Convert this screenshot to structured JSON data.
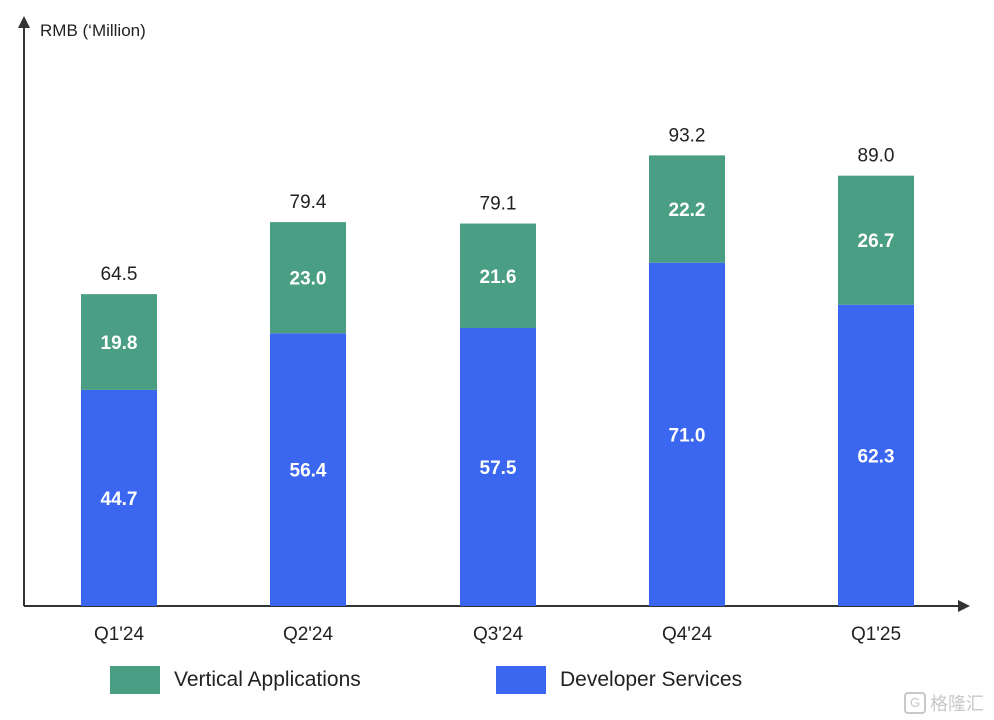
{
  "chart_data": {
    "type": "bar",
    "stacked": true,
    "ylabel": "RMB (‘Million)",
    "categories": [
      "Q1'24",
      "Q2'24",
      "Q3'24",
      "Q4'24",
      "Q1'25"
    ],
    "series": [
      {
        "name": "Developer Services",
        "values": [
          44.7,
          56.4,
          57.5,
          71.0,
          62.3
        ],
        "labels": [
          "44.7",
          "56.4",
          "57.5",
          "71.0",
          "62.3"
        ],
        "color": "#3a66f0"
      },
      {
        "name": "Vertical Applications",
        "values": [
          19.8,
          23.0,
          21.6,
          22.2,
          26.7
        ],
        "labels": [
          "19.8",
          "23.0",
          "21.6",
          "22.2",
          "26.7"
        ],
        "color": "#4a9e84"
      }
    ],
    "totals": [
      "64.5",
      "79.4",
      "79.1",
      "93.2",
      "89.0"
    ],
    "ylim": [
      0,
      100
    ],
    "grid": false,
    "legend_position": "bottom"
  },
  "legend": [
    {
      "label": "Vertical Applications",
      "color": "#4a9e84"
    },
    {
      "label": "Developer Services",
      "color": "#3a66f0"
    }
  ],
  "watermark": {
    "text": "格隆汇",
    "icon": "G"
  }
}
